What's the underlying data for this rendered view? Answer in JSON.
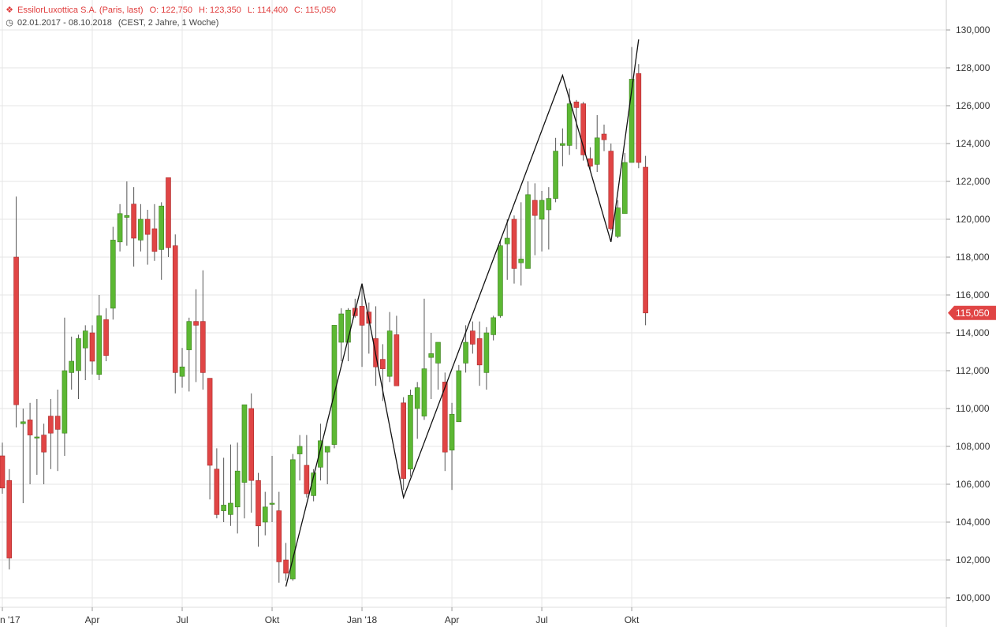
{
  "header": {
    "instrument_line": "EssilorLuxottica S.A. (Paris, last)",
    "open": "O: 122,750",
    "high": "H: 123,350",
    "low": "L: 114,400",
    "close": "C: 115,050",
    "date_range": "02.01.2017 - 08.10.2018",
    "range_detail": "(CEST, 2 Jahre, 1 Woche)",
    "icon_candles": "candlestick-icon",
    "icon_clock": "clock-icon"
  },
  "colors": {
    "up": "#5cb833",
    "down": "#e04545",
    "wick": "#555555",
    "grid": "#e6e6e6",
    "zigzag": "#111111",
    "price_tag": "#e04545"
  },
  "last_price_label": "115,050",
  "chart_data": {
    "type": "candlestick",
    "title": "EssilorLuxottica S.A. (Paris, last)",
    "ylim": [
      99500,
      131500
    ],
    "y_ticks": [
      100000,
      102000,
      104000,
      106000,
      108000,
      110000,
      112000,
      114000,
      116000,
      118000,
      120000,
      122000,
      124000,
      126000,
      128000,
      130000
    ],
    "y_tick_labels": [
      "100,000",
      "102,000",
      "104,000",
      "106,000",
      "108,000",
      "110,000",
      "112,000",
      "114,000",
      "116,000",
      "118,000",
      "120,000",
      "122,000",
      "124,000",
      "126,000",
      "128,000",
      "130,000"
    ],
    "x_labels": [
      {
        "label": "n '17",
        "week": 0
      },
      {
        "label": "Apr",
        "week": 13
      },
      {
        "label": "Jul",
        "week": 26
      },
      {
        "label": "Okt",
        "week": 39
      },
      {
        "label": "Jan '18",
        "week": 52
      },
      {
        "label": "Apr",
        "week": 65
      },
      {
        "label": "Jul",
        "week": 78
      },
      {
        "label": "Okt",
        "week": 91
      }
    ],
    "candles": [
      {
        "o": 107500,
        "h": 108200,
        "l": 105500,
        "c": 105800
      },
      {
        "o": 106200,
        "h": 106800,
        "l": 101500,
        "c": 102100
      },
      {
        "o": 118000,
        "h": 121200,
        "l": 109000,
        "c": 110200
      },
      {
        "o": 109200,
        "h": 110000,
        "l": 105000,
        "c": 109300
      },
      {
        "o": 109400,
        "h": 110300,
        "l": 106000,
        "c": 108600
      },
      {
        "o": 108500,
        "h": 110500,
        "l": 106500,
        "c": 108500
      },
      {
        "o": 108600,
        "h": 109200,
        "l": 106000,
        "c": 107700
      },
      {
        "o": 109600,
        "h": 110500,
        "l": 106800,
        "c": 108700
      },
      {
        "o": 109600,
        "h": 111000,
        "l": 106700,
        "c": 108900
      },
      {
        "o": 108700,
        "h": 114800,
        "l": 107500,
        "c": 112000
      },
      {
        "o": 111900,
        "h": 113800,
        "l": 111000,
        "c": 112500
      },
      {
        "o": 112000,
        "h": 113900,
        "l": 110500,
        "c": 113700
      },
      {
        "o": 113200,
        "h": 114400,
        "l": 111500,
        "c": 114100
      },
      {
        "o": 114000,
        "h": 114400,
        "l": 111800,
        "c": 112500
      },
      {
        "o": 111800,
        "h": 116000,
        "l": 111500,
        "c": 114900
      },
      {
        "o": 114700,
        "h": 115300,
        "l": 112500,
        "c": 112800
      },
      {
        "o": 115300,
        "h": 119600,
        "l": 114700,
        "c": 118900
      },
      {
        "o": 118800,
        "h": 120800,
        "l": 118300,
        "c": 120300
      },
      {
        "o": 120100,
        "h": 122000,
        "l": 118600,
        "c": 120200
      },
      {
        "o": 120800,
        "h": 121700,
        "l": 117500,
        "c": 119000
      },
      {
        "o": 118900,
        "h": 120800,
        "l": 118300,
        "c": 120000
      },
      {
        "o": 120000,
        "h": 120500,
        "l": 117600,
        "c": 119200
      },
      {
        "o": 119500,
        "h": 120800,
        "l": 117800,
        "c": 118300
      },
      {
        "o": 118400,
        "h": 120900,
        "l": 116800,
        "c": 120700
      },
      {
        "o": 122200,
        "h": 122200,
        "l": 118000,
        "c": 118500
      },
      {
        "o": 118600,
        "h": 119200,
        "l": 110800,
        "c": 111900
      },
      {
        "o": 111700,
        "h": 113200,
        "l": 111100,
        "c": 112200
      },
      {
        "o": 113100,
        "h": 114800,
        "l": 110900,
        "c": 114600
      },
      {
        "o": 114600,
        "h": 116300,
        "l": 111400,
        "c": 114400
      },
      {
        "o": 114600,
        "h": 117300,
        "l": 111000,
        "c": 111900
      },
      {
        "o": 111600,
        "h": 111600,
        "l": 105200,
        "c": 107000
      },
      {
        "o": 106800,
        "h": 107900,
        "l": 104200,
        "c": 104400
      },
      {
        "o": 104600,
        "h": 107400,
        "l": 104000,
        "c": 104900
      },
      {
        "o": 104400,
        "h": 108100,
        "l": 103800,
        "c": 105000
      },
      {
        "o": 104800,
        "h": 108200,
        "l": 103400,
        "c": 106700
      },
      {
        "o": 106100,
        "h": 110000,
        "l": 104200,
        "c": 110200
      },
      {
        "o": 110000,
        "h": 110800,
        "l": 104500,
        "c": 106200
      },
      {
        "o": 106200,
        "h": 106600,
        "l": 102700,
        "c": 103800
      },
      {
        "o": 104000,
        "h": 105600,
        "l": 103300,
        "c": 104800
      },
      {
        "o": 105000,
        "h": 107500,
        "l": 104000,
        "c": 105000
      },
      {
        "o": 104600,
        "h": 105600,
        "l": 100800,
        "c": 101900
      },
      {
        "o": 102000,
        "h": 102900,
        "l": 100900,
        "c": 101300
      },
      {
        "o": 101000,
        "h": 107600,
        "l": 100900,
        "c": 107300
      },
      {
        "o": 107600,
        "h": 108600,
        "l": 106200,
        "c": 108000
      },
      {
        "o": 107000,
        "h": 108600,
        "l": 105300,
        "c": 105500
      },
      {
        "o": 105400,
        "h": 106800,
        "l": 105100,
        "c": 106600
      },
      {
        "o": 106900,
        "h": 109200,
        "l": 106200,
        "c": 108300
      },
      {
        "o": 107700,
        "h": 108000,
        "l": 106000,
        "c": 108000
      },
      {
        "o": 108100,
        "h": 114400,
        "l": 107900,
        "c": 114400
      },
      {
        "o": 113500,
        "h": 115300,
        "l": 112500,
        "c": 115000
      },
      {
        "o": 113500,
        "h": 115300,
        "l": 112500,
        "c": 115200
      },
      {
        "o": 115300,
        "h": 115800,
        "l": 114800,
        "c": 114900
      },
      {
        "o": 115400,
        "h": 116600,
        "l": 112200,
        "c": 114400
      },
      {
        "o": 115100,
        "h": 115600,
        "l": 112900,
        "c": 114500
      },
      {
        "o": 113700,
        "h": 115400,
        "l": 111200,
        "c": 112200
      },
      {
        "o": 112600,
        "h": 113400,
        "l": 110400,
        "c": 112100
      },
      {
        "o": 111700,
        "h": 115100,
        "l": 111400,
        "c": 114100
      },
      {
        "o": 113900,
        "h": 114900,
        "l": 111500,
        "c": 111200
      },
      {
        "o": 110300,
        "h": 110600,
        "l": 105700,
        "c": 106300
      },
      {
        "o": 106800,
        "h": 111000,
        "l": 106400,
        "c": 110700
      },
      {
        "o": 110000,
        "h": 111400,
        "l": 108400,
        "c": 111100
      },
      {
        "o": 109600,
        "h": 115800,
        "l": 109400,
        "c": 112100
      },
      {
        "o": 112700,
        "h": 114000,
        "l": 110500,
        "c": 112900
      },
      {
        "o": 112400,
        "h": 113500,
        "l": 111000,
        "c": 113500
      },
      {
        "o": 111400,
        "h": 111900,
        "l": 106700,
        "c": 107700
      },
      {
        "o": 107800,
        "h": 110300,
        "l": 105700,
        "c": 109700
      },
      {
        "o": 109300,
        "h": 112300,
        "l": 109300,
        "c": 112000
      },
      {
        "o": 112400,
        "h": 114400,
        "l": 111900,
        "c": 113500
      },
      {
        "o": 114100,
        "h": 114600,
        "l": 112900,
        "c": 113400
      },
      {
        "o": 113700,
        "h": 114600,
        "l": 111200,
        "c": 112300
      },
      {
        "o": 111900,
        "h": 114300,
        "l": 111000,
        "c": 114000
      },
      {
        "o": 113900,
        "h": 114900,
        "l": 113600,
        "c": 114800
      },
      {
        "o": 114900,
        "h": 118900,
        "l": 114800,
        "c": 118600
      },
      {
        "o": 118700,
        "h": 120000,
        "l": 116800,
        "c": 119000
      },
      {
        "o": 120000,
        "h": 120200,
        "l": 116600,
        "c": 117400
      },
      {
        "o": 117700,
        "h": 120900,
        "l": 116500,
        "c": 117900
      },
      {
        "o": 117400,
        "h": 122000,
        "l": 117400,
        "c": 121300
      },
      {
        "o": 121000,
        "h": 121900,
        "l": 118100,
        "c": 120200
      },
      {
        "o": 120000,
        "h": 121500,
        "l": 118300,
        "c": 121000
      },
      {
        "o": 120500,
        "h": 121700,
        "l": 118400,
        "c": 121100
      },
      {
        "o": 121100,
        "h": 124300,
        "l": 120900,
        "c": 123600
      },
      {
        "o": 123900,
        "h": 124800,
        "l": 122800,
        "c": 124000
      },
      {
        "o": 123900,
        "h": 126900,
        "l": 123400,
        "c": 126100
      },
      {
        "o": 126200,
        "h": 126300,
        "l": 123700,
        "c": 125900
      },
      {
        "o": 126100,
        "h": 126200,
        "l": 123100,
        "c": 123400
      },
      {
        "o": 123200,
        "h": 123800,
        "l": 122600,
        "c": 122800
      },
      {
        "o": 122900,
        "h": 125500,
        "l": 122500,
        "c": 124300
      },
      {
        "o": 124500,
        "h": 125000,
        "l": 123600,
        "c": 124200
      },
      {
        "o": 123600,
        "h": 124000,
        "l": 119400,
        "c": 119500
      },
      {
        "o": 119100,
        "h": 121000,
        "l": 119000,
        "c": 120600
      },
      {
        "o": 120300,
        "h": 123500,
        "l": 120300,
        "c": 123000
      },
      {
        "o": 123000,
        "h": 129100,
        "l": 123000,
        "c": 127400
      },
      {
        "o": 127700,
        "h": 128200,
        "l": 122700,
        "c": 123000
      },
      {
        "o": 122750,
        "h": 123350,
        "l": 114400,
        "c": 115050
      }
    ],
    "zigzag": [
      {
        "week": 41,
        "value": 100600
      },
      {
        "week": 52,
        "value": 116600
      },
      {
        "week": 58,
        "value": 105300
      },
      {
        "week": 81,
        "value": 127600
      },
      {
        "week": 88,
        "value": 118800
      },
      {
        "week": 92,
        "value": 129500
      }
    ],
    "last_price": 115050,
    "grid": true
  }
}
